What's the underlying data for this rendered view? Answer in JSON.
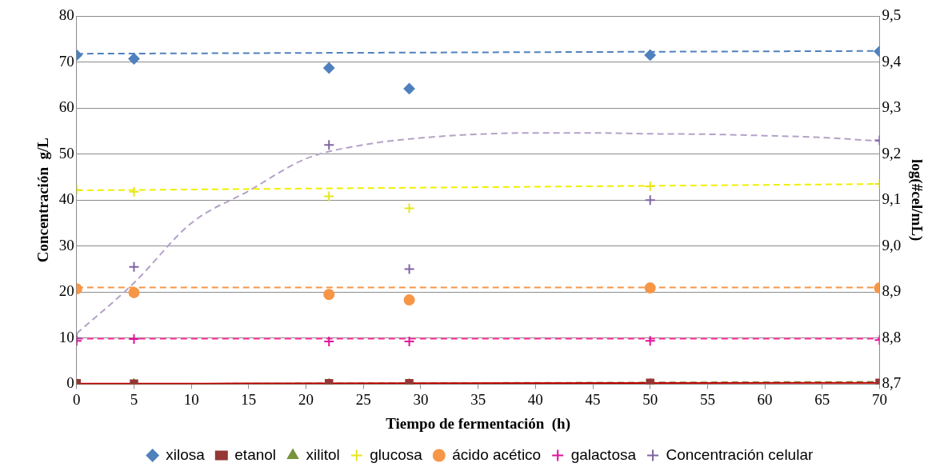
{
  "chart_data": {
    "type": "scatter",
    "xlabel": "Tiempo de fermentación  (h)",
    "ylabel": "Concentración  g/L",
    "y2label": "log(#cel/mL)",
    "xlim": [
      0,
      70
    ],
    "xticks": [
      0,
      5,
      10,
      15,
      20,
      25,
      30,
      35,
      40,
      45,
      50,
      55,
      60,
      65,
      70
    ],
    "ylim": [
      0,
      80
    ],
    "yticks": [
      0,
      10,
      20,
      30,
      40,
      50,
      60,
      70,
      80
    ],
    "y2lim": [
      8.7,
      9.5
    ],
    "y2ticks": [
      {
        "value": 8.7,
        "label": "8,7"
      },
      {
        "value": 8.8,
        "label": "8,8"
      },
      {
        "value": 8.9,
        "label": "8,9"
      },
      {
        "value": 9.0,
        "label": "9,0"
      },
      {
        "value": 9.1,
        "label": "9,1"
      },
      {
        "value": 9.2,
        "label": "9,2"
      },
      {
        "value": 9.3,
        "label": "9,3"
      },
      {
        "value": 9.4,
        "label": "9,4"
      },
      {
        "value": 9.5,
        "label": "9,5"
      }
    ],
    "grid": "y",
    "legend": "bottom",
    "x": [
      0,
      5,
      22,
      29,
      50,
      70
    ],
    "series": [
      {
        "name": "xilosa",
        "color": "#4f81bd",
        "marker": "diamond",
        "values": [
          71.5,
          70.7,
          68.7,
          64.2,
          71.5,
          72.3
        ]
      },
      {
        "name": "etanol",
        "color": "#953735",
        "marker": "square",
        "values": [
          0.2,
          0.1,
          0.2,
          0.2,
          0.3,
          0.3
        ]
      },
      {
        "name": "xilitol",
        "color": "#77933c",
        "marker": "triangle",
        "values": [
          0,
          0,
          0,
          0,
          0,
          0
        ]
      },
      {
        "name": "glucosa",
        "color": "#e6e61a",
        "marker": "cross",
        "values": [
          42.2,
          41.8,
          40.8,
          38.2,
          43,
          43.5
        ]
      },
      {
        "name": "ácido acético",
        "color": "#f79646",
        "marker": "circle",
        "values": [
          20.7,
          19.9,
          19.5,
          18.3,
          20.9,
          20.9
        ]
      },
      {
        "name": "galactosa",
        "color": "#e0119d",
        "marker": "cross",
        "values": [
          9.4,
          9.8,
          9.3,
          9.3,
          9.4,
          9.6
        ]
      },
      {
        "name": "Concentración celular",
        "color": "#8064a2",
        "marker": "cross",
        "axis": "y2",
        "values": [
          8.8,
          8.955,
          9.22,
          8.95,
          9.1,
          9.23
        ]
      },
      {
        "type": "line",
        "color": "#4f81bd",
        "line_style": "dashed",
        "marker": "none",
        "x": [
          0,
          70
        ],
        "values": [
          71.8,
          72.4
        ]
      },
      {
        "type": "line",
        "color": "#c00000",
        "line_style": "solid",
        "marker": "none",
        "x": [
          0,
          70
        ],
        "values": [
          0.1,
          0.3
        ]
      },
      {
        "type": "line",
        "color": "#77933c",
        "line_style": "dashed",
        "marker": "none",
        "x": [
          0,
          70
        ],
        "values": [
          0,
          0.5
        ]
      },
      {
        "type": "line",
        "color": "#f0f000",
        "line_style": "dashed",
        "marker": "none",
        "x": [
          0,
          70
        ],
        "values": [
          42.1,
          43.5
        ]
      },
      {
        "type": "line",
        "color": "#f79646",
        "line_style": "dashed",
        "marker": "none",
        "x": [
          0,
          70
        ],
        "values": [
          21,
          21
        ]
      },
      {
        "type": "line",
        "color": "#ff3399",
        "line_style": "dashed",
        "marker": "none",
        "x": [
          0,
          70
        ],
        "values": [
          9.9,
          9.9
        ]
      },
      {
        "type": "line",
        "color": "#b3a2c7",
        "line_style": "dashed",
        "marker": "none",
        "axis": "y2",
        "x": [
          0,
          5,
          10,
          15,
          20,
          25,
          30,
          35,
          40,
          45,
          50,
          55,
          60,
          65,
          70
        ],
        "values": [
          8.81,
          8.92,
          9.05,
          9.12,
          9.19,
          9.22,
          9.235,
          9.243,
          9.246,
          9.246,
          9.244,
          9.243,
          9.24,
          9.236,
          9.228
        ]
      }
    ]
  }
}
